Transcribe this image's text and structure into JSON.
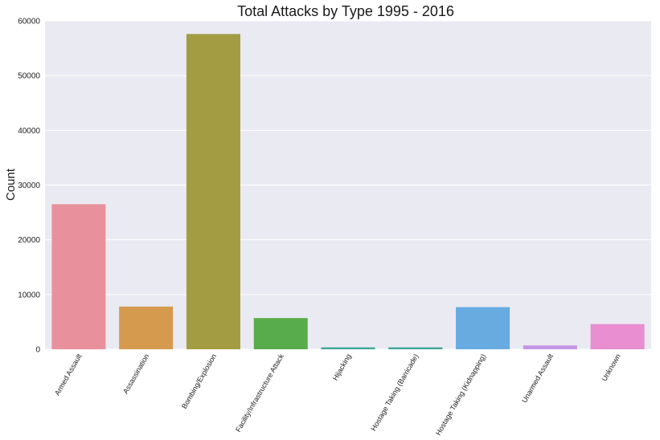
{
  "chart_data": {
    "type": "bar",
    "title": "Total Attacks by Type 1995 - 2016",
    "xlabel": "",
    "ylabel": "Count",
    "ylim": [
      0,
      60000
    ],
    "yticks": [
      "0",
      "10000",
      "20000",
      "30000",
      "40000",
      "50000",
      "60000"
    ],
    "grid": true,
    "categories": [
      "Armed Assault",
      "Assassination",
      "Bombing/Explosion",
      "Facility/Infrastructure Attack",
      "Hijacking",
      "Hostage Taking (Barricade)",
      "Hostage Taking (Kidnapping)",
      "Unarmed Assault",
      "Unknown"
    ],
    "values": [
      26500,
      7800,
      57600,
      5700,
      350,
      350,
      7700,
      700,
      4600
    ],
    "colors": [
      "#e8919c",
      "#d59a4e",
      "#a39c43",
      "#59ac4b",
      "#3fa59a",
      "#3fa59a",
      "#67abe0",
      "#c494e6",
      "#e98ed0"
    ],
    "background_color": "#eaeaf2",
    "grid_color": "#ffffff"
  }
}
